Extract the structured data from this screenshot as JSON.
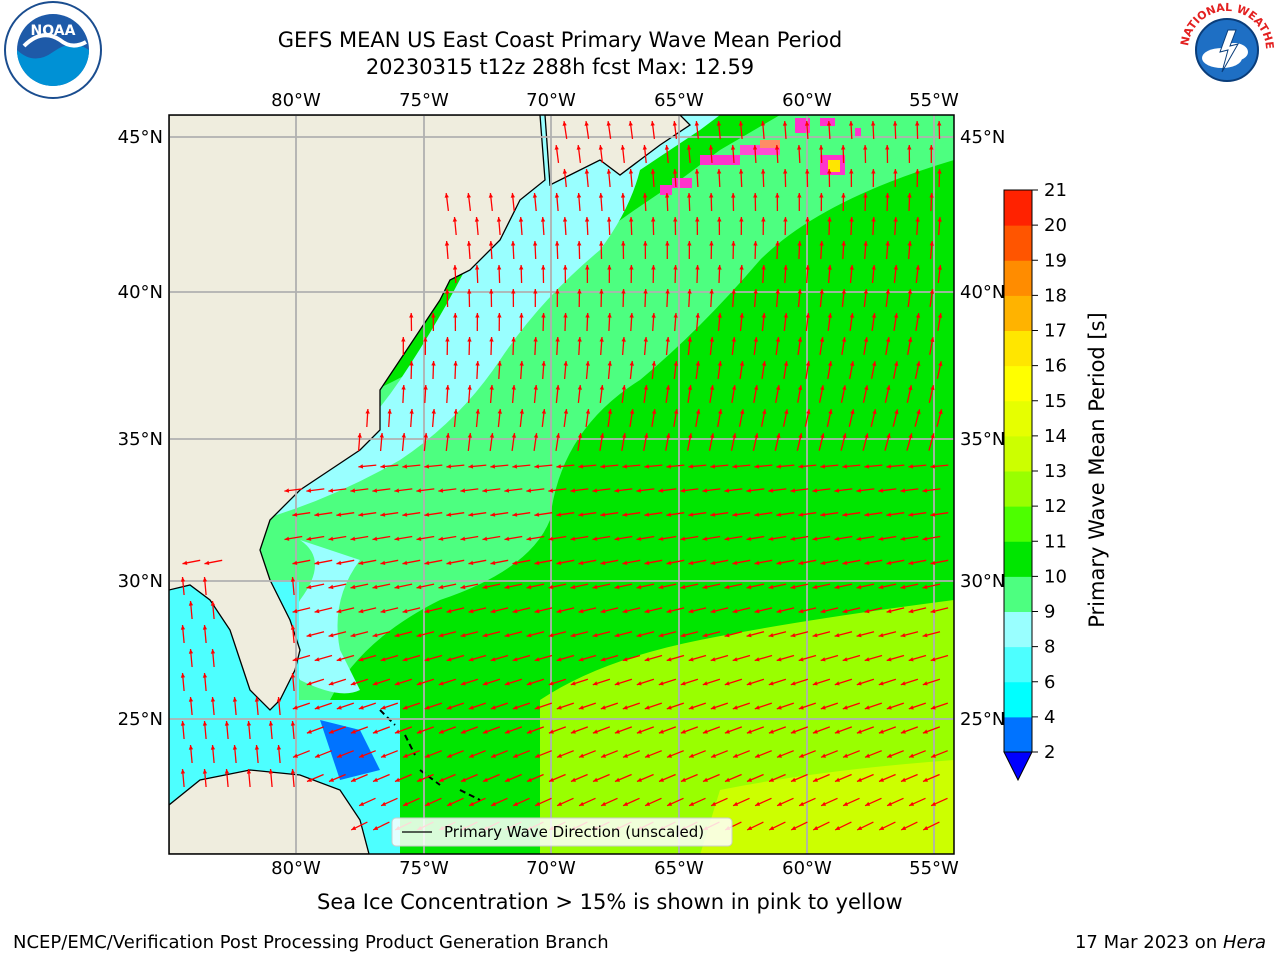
{
  "header": {
    "title_line1": "GEFS MEAN US East Coast Primary Wave Mean Period",
    "title_line2": "20230315 t12z 288h fcst   Max: 12.59"
  },
  "logos": {
    "left": {
      "icon": "noaa-logo-icon",
      "text": "NOAA"
    },
    "right": {
      "icon": "nws-logo-icon",
      "text": "NATIONAL WEATHER SERVICE"
    }
  },
  "map": {
    "lon_ticks_top": [
      "80°W",
      "75°W",
      "70°W",
      "65°W",
      "60°W",
      "55°W"
    ],
    "lon_ticks_bottom": [
      "80°W",
      "75°W",
      "70°W",
      "65°W",
      "60°W",
      "55°W"
    ],
    "lat_ticks_left": [
      "45°N",
      "40°N",
      "35°N",
      "30°N",
      "25°N"
    ],
    "lat_ticks_right": [
      "45°N",
      "40°N",
      "35°N",
      "30°N",
      "25°N"
    ],
    "legend_label": "Primary Wave Direction (unscaled)",
    "colors": {
      "land": "#efedde",
      "arrow": "#ff0000",
      "grid": "#b0b0b0"
    }
  },
  "colorbar": {
    "label": "Primary Wave Mean Period [s]",
    "ticks": [
      "2",
      "4",
      "6",
      "8",
      "9",
      "10",
      "11",
      "12",
      "13",
      "14",
      "15",
      "16",
      "17",
      "18",
      "19",
      "20",
      "21"
    ],
    "colors": [
      "#0073ff",
      "#00ffff",
      "#4dffff",
      "#99ffff",
      "#4dff80",
      "#00e600",
      "#4dff00",
      "#99ff00",
      "#ccff00",
      "#e6ff00",
      "#ffff00",
      "#ffe600",
      "#ffb300",
      "#ff8c00",
      "#ff5500",
      "#ff2200",
      "#ff0000"
    ],
    "under_color": "#0000ff"
  },
  "subtitle": "Sea Ice Concentration > 15% is shown in pink to yellow",
  "footer": {
    "left": "NCEP/EMC/Verification Post Processing Product Generation Branch",
    "right_prefix": "17 Mar 2023 on ",
    "right_machine": "Hera"
  }
}
